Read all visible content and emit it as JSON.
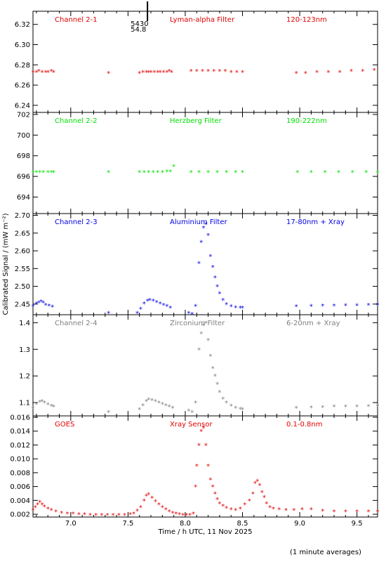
{
  "chart_data": {
    "type": "scatter",
    "x_axis": {
      "label": "Time / h UTC, 11 Nov 2025",
      "range": [
        6.67,
        9.68
      ],
      "ticks": [
        "7.0",
        "7.5",
        "8.0",
        "8.5",
        "9.0",
        "9.5"
      ]
    },
    "y_axis_label": "Calibrated Signal / (mW m⁻²)",
    "footer": "(1 minute averages)",
    "top_marker": {
      "x": 7.67,
      "labels": [
        "5430",
        "54.8"
      ]
    },
    "panels": [
      {
        "channel": "Channel 2-1",
        "filter": "Lyman-alpha Filter",
        "band": "120-123nm",
        "color": "#e00000",
        "ylim": [
          6.233,
          6.333
        ],
        "yticks": [
          "6.24",
          "6.26",
          "6.28",
          "6.30",
          "6.32"
        ],
        "series": [
          {
            "x": [
              6.67,
              6.7,
              6.72,
              6.75,
              6.78,
              6.8,
              6.83,
              6.85
            ],
            "y": [
              6.273,
              6.273,
              6.274,
              6.273,
              6.273,
              6.273,
              6.274,
              6.273
            ]
          },
          {
            "x": [
              7.33
            ],
            "y": [
              6.272
            ]
          },
          {
            "x": [
              7.6,
              7.63,
              7.66,
              7.68,
              7.7,
              7.73,
              7.76,
              7.78,
              7.81,
              7.84,
              7.86,
              7.88
            ],
            "y": [
              6.272,
              6.273,
              6.273,
              6.273,
              6.273,
              6.273,
              6.273,
              6.273,
              6.273,
              6.273,
              6.274,
              6.273
            ]
          },
          {
            "x": [
              8.05,
              8.1,
              8.15,
              8.2,
              8.25,
              8.3,
              8.35,
              8.4,
              8.45,
              8.5
            ],
            "y": [
              6.274,
              6.274,
              6.274,
              6.274,
              6.274,
              6.274,
              6.274,
              6.273,
              6.273,
              6.273
            ]
          },
          {
            "x": [
              8.97,
              9.05,
              9.15,
              9.25,
              9.35,
              9.45,
              9.55,
              9.65
            ],
            "y": [
              6.272,
              6.272,
              6.273,
              6.273,
              6.273,
              6.274,
              6.274,
              6.275
            ]
          }
        ]
      },
      {
        "channel": "Channel 2-2",
        "filter": "Herzberg Filter",
        "band": "190-222nm",
        "color": "#00e000",
        "ylim": [
          692.4,
          702.2
        ],
        "yticks": [
          "694",
          "696",
          "698",
          "700",
          "702"
        ],
        "series": [
          {
            "x": [
              6.67,
              6.7,
              6.73,
              6.76,
              6.8,
              6.83,
              6.85
            ],
            "y": [
              696.4,
              696.4,
              696.4,
              696.4,
              696.4,
              696.4,
              696.4
            ]
          },
          {
            "x": [
              7.33
            ],
            "y": [
              696.4
            ]
          },
          {
            "x": [
              7.6,
              7.64,
              7.68,
              7.72,
              7.76,
              7.8,
              7.84,
              7.87,
              7.9
            ],
            "y": [
              696.4,
              696.4,
              696.4,
              696.4,
              696.4,
              696.4,
              696.5,
              696.5,
              697.0
            ]
          },
          {
            "x": [
              8.05,
              8.12,
              8.2,
              8.28,
              8.36,
              8.44,
              8.5
            ],
            "y": [
              696.4,
              696.4,
              696.4,
              696.4,
              696.4,
              696.4,
              696.4
            ]
          },
          {
            "x": [
              8.98,
              9.1,
              9.22,
              9.34,
              9.46,
              9.58,
              9.68
            ],
            "y": [
              696.4,
              696.4,
              696.4,
              696.4,
              696.4,
              696.4,
              696.4
            ]
          }
        ]
      },
      {
        "channel": "Channel 2-3",
        "filter": "Aluminium Filter",
        "band": "17-80nm + Xray",
        "color": "#0000e0",
        "ylim": [
          2.42,
          2.705
        ],
        "yticks": [
          "2.45",
          "2.50",
          "2.55",
          "2.60",
          "2.65",
          "2.70"
        ],
        "series": [
          {
            "x": [
              6.67,
              6.7,
              6.72,
              6.74,
              6.76,
              6.78,
              6.81,
              6.84
            ],
            "y": [
              2.445,
              2.452,
              2.455,
              2.458,
              2.455,
              2.448,
              2.446,
              2.443
            ]
          },
          {
            "x": [
              7.33
            ],
            "y": [
              2.425
            ]
          },
          {
            "x": [
              7.58,
              7.61,
              7.64,
              7.67,
              7.69,
              7.72,
              7.75,
              7.78,
              7.81,
              7.84,
              7.87
            ],
            "y": [
              2.425,
              2.437,
              2.452,
              2.46,
              2.462,
              2.46,
              2.456,
              2.452,
              2.448,
              2.445,
              2.44
            ]
          },
          {
            "x": [
              8.03,
              8.06,
              8.09,
              8.12,
              8.14,
              8.16,
              8.18,
              8.2,
              8.22,
              8.24,
              8.26,
              8.28,
              8.3,
              8.33,
              8.36,
              8.4,
              8.44,
              8.48,
              8.5
            ],
            "y": [
              2.425,
              2.422,
              2.445,
              2.565,
              2.625,
              2.665,
              2.675,
              2.645,
              2.585,
              2.555,
              2.525,
              2.5,
              2.48,
              2.462,
              2.45,
              2.444,
              2.441,
              2.44,
              2.44
            ]
          },
          {
            "x": [
              8.97,
              9.1,
              9.2,
              9.3,
              9.4,
              9.5,
              9.6,
              9.68
            ],
            "y": [
              2.444,
              2.445,
              2.446,
              2.446,
              2.447,
              2.447,
              2.448,
              2.449
            ]
          }
        ]
      },
      {
        "channel": "Channel 2-4",
        "filter": "Zirconium Filter",
        "band": "6-20nm + Xray",
        "color": "#808080",
        "ylim": [
          1.05,
          1.43
        ],
        "yticks": [
          "1.1",
          "1.2",
          "1.3",
          "1.4"
        ],
        "series": [
          {
            "x": [
              6.67,
              6.7,
              6.73,
              6.75,
              6.77,
              6.8,
              6.83,
              6.85
            ],
            "y": [
              1.08,
              1.095,
              1.103,
              1.105,
              1.1,
              1.093,
              1.088,
              1.085
            ]
          },
          {
            "x": [
              7.33
            ],
            "y": [
              1.065
            ]
          },
          {
            "x": [
              7.6,
              7.63,
              7.66,
              7.68,
              7.71,
              7.74,
              7.77,
              7.8,
              7.83,
              7.86,
              7.89
            ],
            "y": [
              1.075,
              1.09,
              1.105,
              1.112,
              1.11,
              1.105,
              1.1,
              1.095,
              1.09,
              1.085,
              1.08
            ]
          },
          {
            "x": [
              8.03,
              8.06,
              8.09,
              8.12,
              8.14,
              8.16,
              8.18,
              8.2,
              8.22,
              8.24,
              8.26,
              8.28,
              8.3,
              8.33,
              8.36,
              8.4,
              8.44,
              8.48,
              8.5
            ],
            "y": [
              1.07,
              1.065,
              1.1,
              1.3,
              1.36,
              1.39,
              1.4,
              1.335,
              1.275,
              1.23,
              1.2,
              1.17,
              1.14,
              1.115,
              1.1,
              1.088,
              1.08,
              1.076,
              1.075
            ]
          },
          {
            "x": [
              8.97,
              9.1,
              9.2,
              9.3,
              9.4,
              9.5,
              9.6,
              9.68
            ],
            "y": [
              1.08,
              1.082,
              1.083,
              1.085,
              1.085,
              1.086,
              1.087,
              1.088
            ]
          }
        ]
      },
      {
        "channel": "GOES",
        "filter": "Xray Sensor",
        "band": "0.1-0.8nm",
        "color": "#e00000",
        "ylim": [
          0.0016,
          0.0162
        ],
        "yticks": [
          "0.002",
          "0.004",
          "0.006",
          "0.008",
          "0.010",
          "0.012",
          "0.014",
          "0.016"
        ],
        "series": [
          {
            "x": [
              6.67,
              6.69,
              6.71,
              6.73,
              6.75,
              6.77,
              6.8,
              6.83,
              6.87,
              6.92,
              6.97,
              7.02,
              7.07,
              7.12,
              7.17,
              7.22,
              7.27,
              7.32,
              7.37,
              7.42,
              7.47,
              7.52,
              7.55,
              7.58,
              7.61,
              7.64,
              7.66,
              7.68,
              7.71,
              7.74,
              7.77,
              7.8,
              7.83,
              7.86,
              7.89,
              7.92,
              7.95,
              7.98,
              8.01,
              8.04,
              8.07,
              8.09,
              8.1,
              8.12,
              8.14,
              8.16,
              8.18,
              8.2,
              8.22,
              8.24,
              8.26,
              8.28,
              8.3,
              8.33,
              8.36,
              8.4,
              8.44,
              8.48,
              8.52,
              8.56,
              8.59,
              8.61,
              8.63,
              8.65,
              8.67,
              8.69,
              8.71,
              8.74,
              8.77,
              8.82,
              8.88,
              8.95,
              9.02,
              9.1,
              9.2,
              9.3,
              9.4,
              9.5,
              9.6,
              9.68
            ],
            "y": [
              0.0026,
              0.003,
              0.0034,
              0.0038,
              0.0034,
              0.0031,
              0.0028,
              0.0026,
              0.0024,
              0.0022,
              0.0021,
              0.0021,
              0.002,
              0.002,
              0.0019,
              0.0019,
              0.0019,
              0.0019,
              0.0019,
              0.0019,
              0.0019,
              0.002,
              0.0021,
              0.0025,
              0.003,
              0.004,
              0.0047,
              0.0049,
              0.0044,
              0.0039,
              0.0034,
              0.003,
              0.0027,
              0.0024,
              0.0022,
              0.0021,
              0.002,
              0.0019,
              0.0019,
              0.0019,
              0.0021,
              0.006,
              0.009,
              0.012,
              0.014,
              0.0145,
              0.012,
              0.009,
              0.007,
              0.006,
              0.005,
              0.0042,
              0.0036,
              0.0032,
              0.0029,
              0.0027,
              0.0026,
              0.0028,
              0.0034,
              0.004,
              0.005,
              0.0065,
              0.0068,
              0.0062,
              0.0052,
              0.0045,
              0.0036,
              0.003,
              0.0028,
              0.0027,
              0.0026,
              0.0026,
              0.0027,
              0.0027,
              0.0025,
              0.0024,
              0.0024,
              0.0024,
              0.0024,
              0.0024
            ]
          }
        ]
      }
    ]
  }
}
